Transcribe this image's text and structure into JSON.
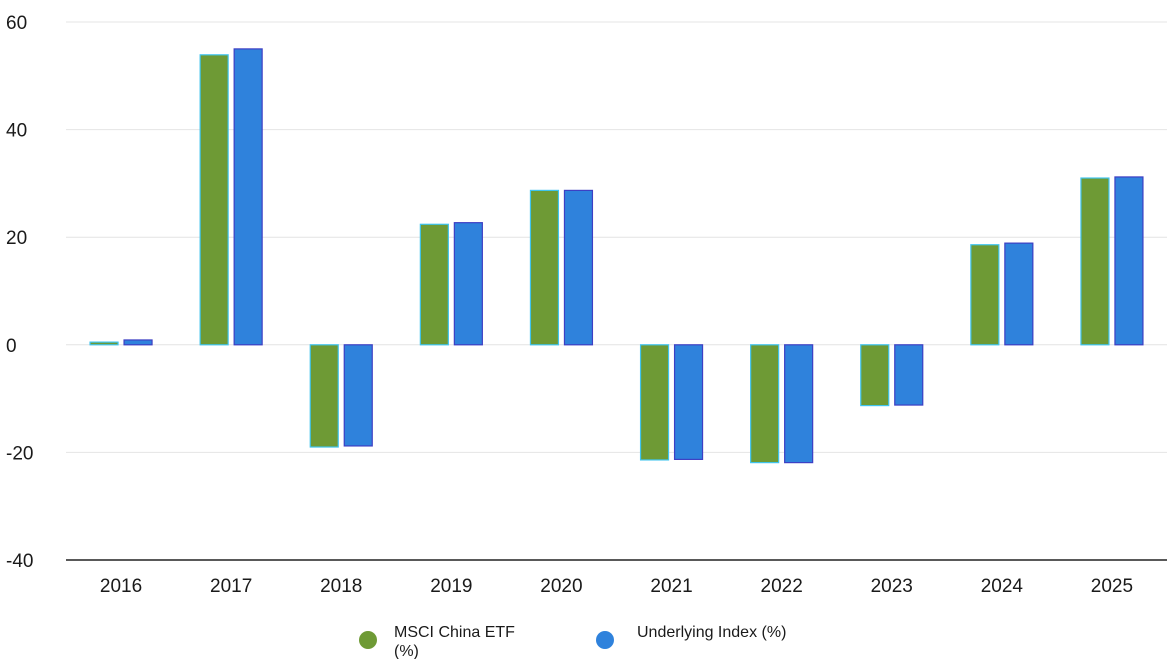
{
  "chart_data": {
    "type": "bar",
    "categories": [
      "2016",
      "2017",
      "2018",
      "2019",
      "2020",
      "2021",
      "2022",
      "2023",
      "2024",
      "2025"
    ],
    "series": [
      {
        "name": "MSCI China ETF (%)",
        "color": "#6e9a35",
        "outline": "#3fc4ee",
        "values": [
          0.5,
          53.9,
          -19.0,
          22.4,
          28.7,
          -21.4,
          -21.9,
          -11.3,
          18.6,
          31.0
        ]
      },
      {
        "name": "Underlying Index (%)",
        "color": "#2f82dc",
        "outline": "#3d3fc4",
        "values": [
          0.9,
          55.0,
          -18.8,
          22.7,
          28.7,
          -21.3,
          -21.9,
          -11.2,
          18.9,
          31.2
        ]
      }
    ],
    "ylim": [
      -40,
      60
    ],
    "yticks": [
      -40,
      -20,
      0,
      20,
      40,
      60
    ],
    "grid": true,
    "legend_position": "bottom-center",
    "title": "",
    "xlabel": "",
    "ylabel": ""
  }
}
